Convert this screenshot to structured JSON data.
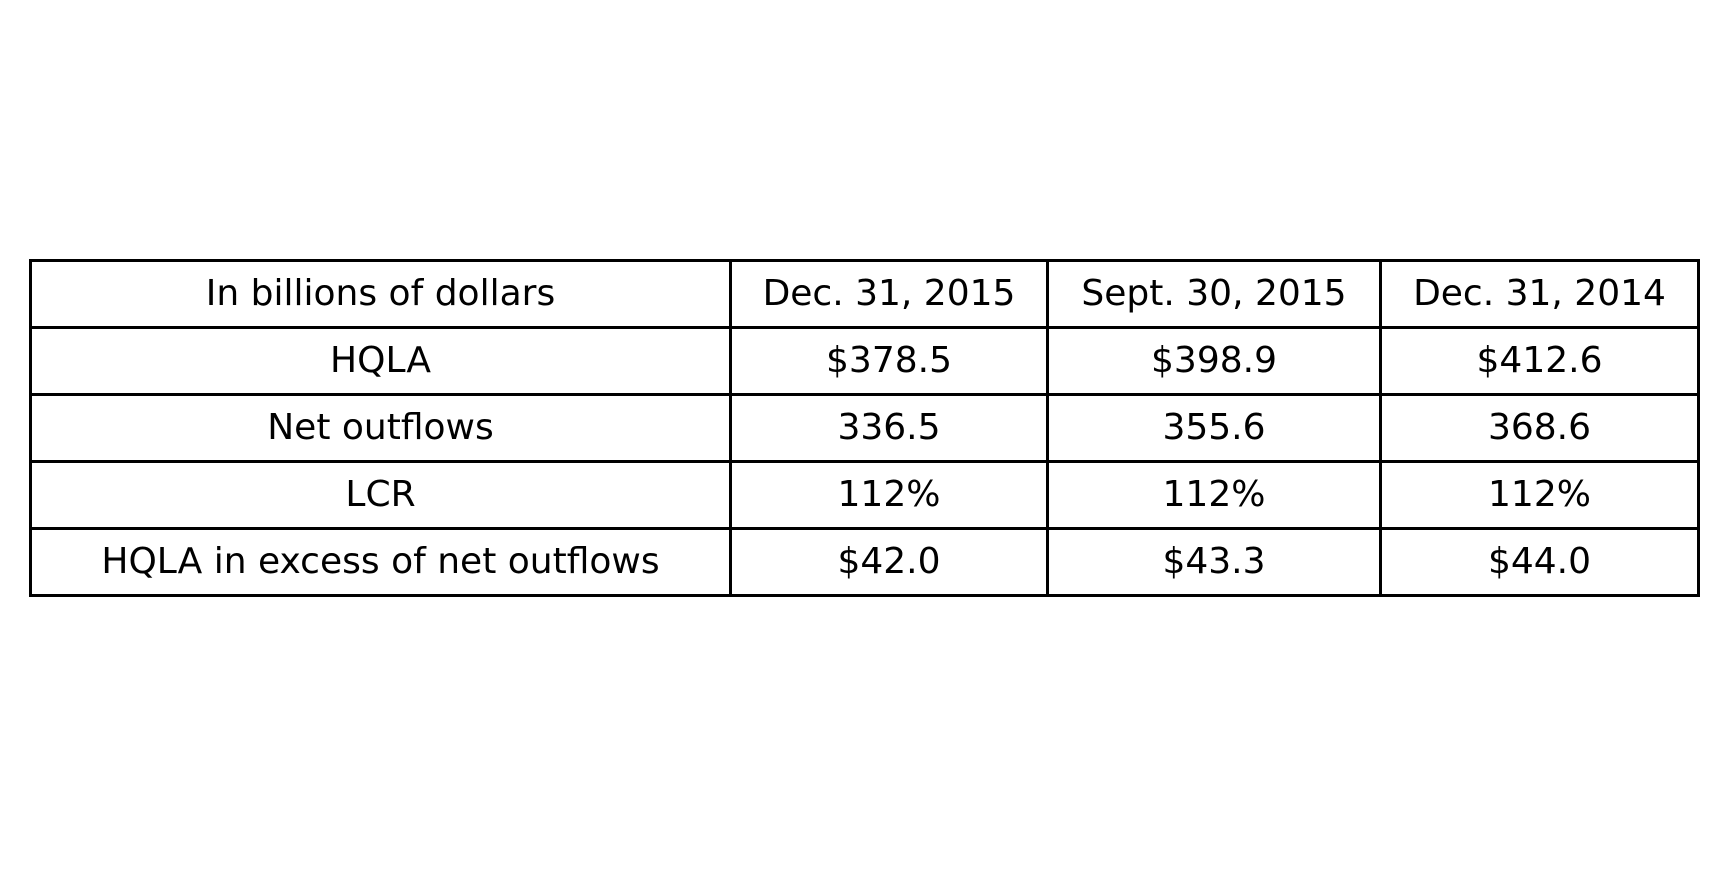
{
  "chart_data": {
    "type": "table",
    "columns": [
      "In billions of dollars",
      "Dec. 31, 2015",
      "Sept. 30, 2015",
      "Dec. 31, 2014"
    ],
    "rows": [
      [
        "HQLA",
        "$378.5",
        "$398.9",
        "$412.6"
      ],
      [
        "Net outflows",
        "336.5",
        "355.6",
        "368.6"
      ],
      [
        "LCR",
        "112%",
        "112%",
        "112%"
      ],
      [
        "HQLA in excess of net outflows",
        "$42.0",
        "$43.3",
        "$44.0"
      ]
    ]
  }
}
